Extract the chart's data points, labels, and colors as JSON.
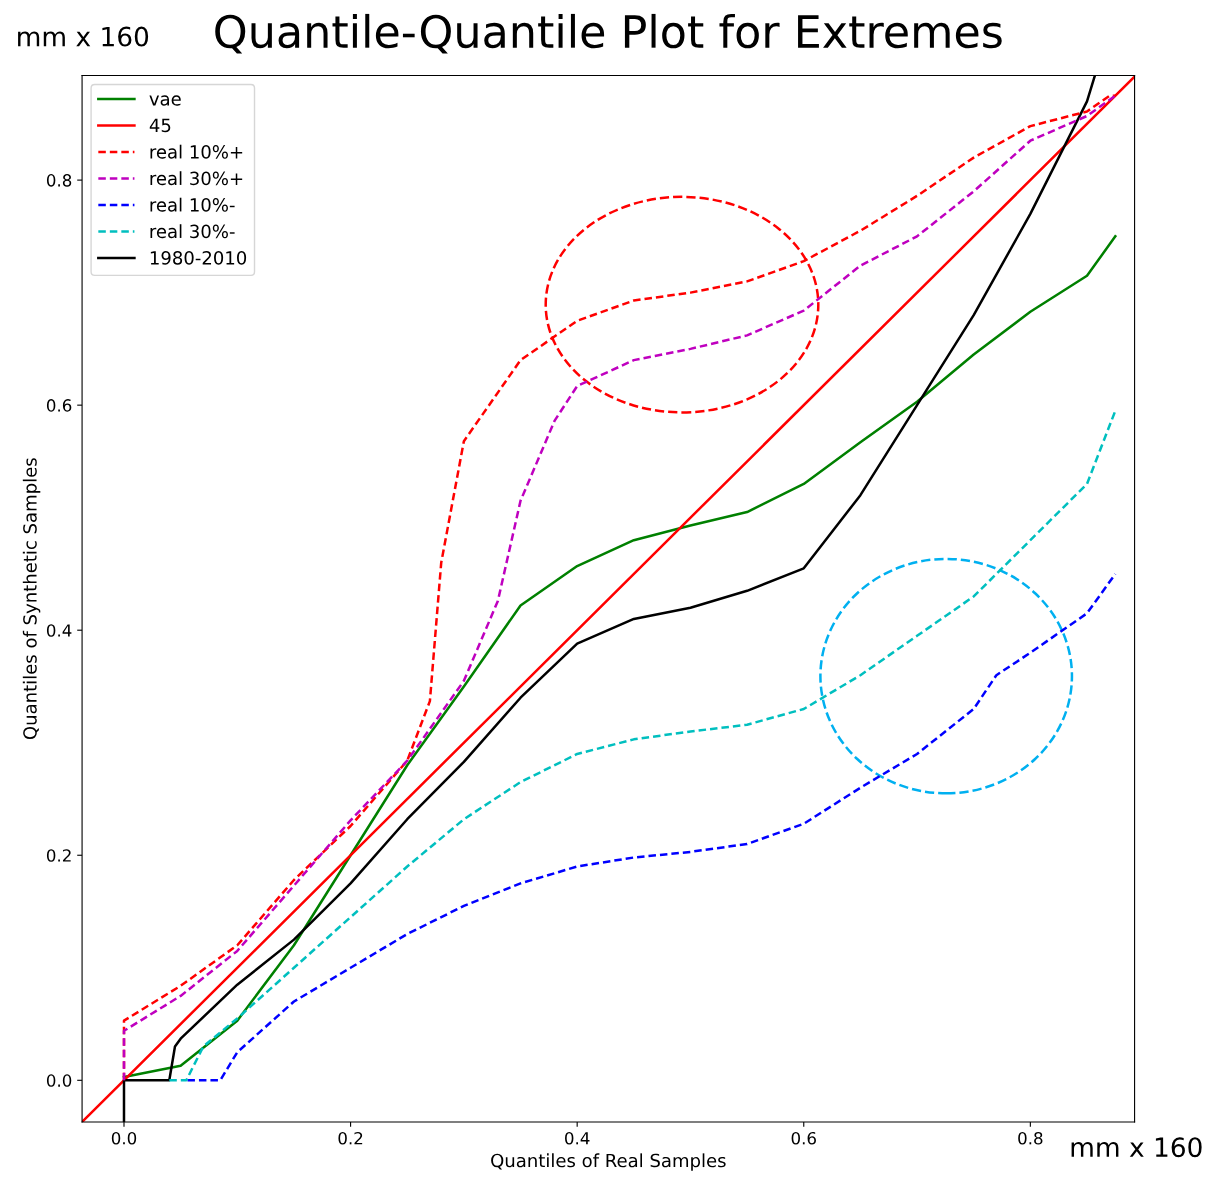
{
  "chart_data": {
    "type": "line",
    "title": "Quantile-Quantile Plot for Extremes",
    "xlabel": "Quantiles of Real Samples",
    "ylabel": "Quantiles of Synthetic Samples",
    "annotations": [
      "mm x 160",
      "mm x 160"
    ],
    "xlim": [
      -0.037,
      0.892
    ],
    "ylim": [
      -0.037,
      0.893
    ],
    "xticks": [
      {
        "value": 0,
        "label": "0.0"
      },
      {
        "value": 0.2,
        "label": "0.2"
      },
      {
        "value": 0.4,
        "label": "0.4"
      },
      {
        "value": 0.6,
        "label": "0.6"
      },
      {
        "value": 0.8,
        "label": "0.8"
      }
    ],
    "yticks": [
      {
        "value": 0,
        "label": "0.0"
      },
      {
        "value": 0.2,
        "label": "0.2"
      },
      {
        "value": 0.4,
        "label": "0.4"
      },
      {
        "value": 0.6,
        "label": "0.6"
      },
      {
        "value": 0.8,
        "label": "0.8"
      }
    ],
    "grid": false,
    "legend": "top left",
    "series": [
      {
        "name": "vae",
        "color": "#008000",
        "line_style": "solid",
        "x": [
          0,
          0.05,
          0.1,
          0.15,
          0.2,
          0.25,
          0.3,
          0.35,
          0.4,
          0.45,
          0.5,
          0.55,
          0.6,
          0.65,
          0.7,
          0.75,
          0.8,
          0.85,
          0.875
        ],
        "values": [
          0.003,
          0.013,
          0.053,
          0.12,
          0.2,
          0.28,
          0.35,
          0.422,
          0.457,
          0.48,
          0.493,
          0.505,
          0.53,
          0.567,
          0.603,
          0.645,
          0.683,
          0.715,
          0.75
        ]
      },
      {
        "name": "45",
        "color": "#ff0000",
        "line_style": "solid",
        "x": [
          -0.037,
          0.892
        ],
        "values": [
          -0.037,
          0.892
        ]
      },
      {
        "name": "real 10%+",
        "color": "#ff0000",
        "line_style": "dashed",
        "x": [
          0,
          0,
          0.05,
          0.1,
          0.15,
          0.2,
          0.25,
          0.27,
          0.28,
          0.3,
          0.35,
          0.4,
          0.45,
          0.5,
          0.55,
          0.6,
          0.65,
          0.7,
          0.75,
          0.8,
          0.85,
          0.87,
          0.875
        ],
        "values": [
          0,
          0.053,
          0.084,
          0.12,
          0.178,
          0.226,
          0.284,
          0.337,
          0.46,
          0.568,
          0.64,
          0.675,
          0.693,
          0.7,
          0.71,
          0.728,
          0.755,
          0.786,
          0.82,
          0.848,
          0.861,
          0.875,
          0.875
        ]
      },
      {
        "name": "real 30%+",
        "color": "#bf00bf",
        "line_style": "dashed",
        "x": [
          0,
          0,
          0.05,
          0.1,
          0.15,
          0.2,
          0.25,
          0.3,
          0.33,
          0.35,
          0.38,
          0.4,
          0.45,
          0.5,
          0.55,
          0.6,
          0.65,
          0.7,
          0.75,
          0.8,
          0.85,
          0.875
        ],
        "values": [
          0,
          0.044,
          0.075,
          0.115,
          0.173,
          0.231,
          0.284,
          0.355,
          0.426,
          0.515,
          0.586,
          0.617,
          0.64,
          0.65,
          0.662,
          0.684,
          0.724,
          0.75,
          0.79,
          0.835,
          0.857,
          0.875
        ]
      },
      {
        "name": "real 10%-",
        "color": "#0000ff",
        "line_style": "dashed",
        "x": [
          0.056,
          0.085,
          0.1,
          0.15,
          0.2,
          0.25,
          0.3,
          0.35,
          0.4,
          0.45,
          0.5,
          0.55,
          0.6,
          0.65,
          0.7,
          0.75,
          0.77,
          0.8,
          0.85,
          0.875
        ],
        "values": [
          0,
          0,
          0.025,
          0.07,
          0.1,
          0.13,
          0.155,
          0.175,
          0.19,
          0.198,
          0.203,
          0.21,
          0.228,
          0.26,
          0.29,
          0.33,
          0.36,
          0.38,
          0.415,
          0.45
        ]
      },
      {
        "name": "real 30%-",
        "color": "#00bfbf",
        "line_style": "dashed",
        "x": [
          0.04,
          0.055,
          0.06,
          0.07,
          0.1,
          0.15,
          0.2,
          0.25,
          0.3,
          0.35,
          0.4,
          0.45,
          0.5,
          0.55,
          0.6,
          0.65,
          0.7,
          0.75,
          0.8,
          0.85,
          0.875
        ],
        "values": [
          0,
          0,
          0.01,
          0.03,
          0.055,
          0.1,
          0.145,
          0.19,
          0.232,
          0.265,
          0.29,
          0.303,
          0.31,
          0.316,
          0.33,
          0.36,
          0.395,
          0.43,
          0.48,
          0.53,
          0.595
        ]
      },
      {
        "name": "1980-2010",
        "color": "#000000",
        "line_style": "solid",
        "x": [
          0,
          0,
          0.04,
          0.045,
          0.05,
          0.1,
          0.15,
          0.2,
          0.25,
          0.3,
          0.35,
          0.4,
          0.45,
          0.5,
          0.55,
          0.6,
          0.65,
          0.7,
          0.75,
          0.8,
          0.83,
          0.85,
          0.857
        ],
        "values": [
          -0.037,
          0,
          0,
          0.03,
          0.037,
          0.085,
          0.125,
          0.175,
          0.232,
          0.283,
          0.34,
          0.388,
          0.41,
          0.42,
          0.435,
          0.455,
          0.52,
          0.6,
          0.68,
          0.77,
          0.83,
          0.87,
          0.893
        ]
      }
    ]
  }
}
